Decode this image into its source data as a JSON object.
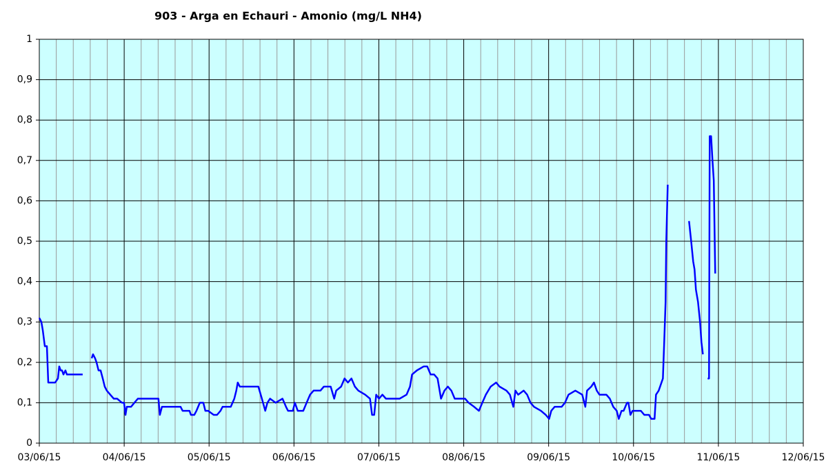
{
  "chart_data": {
    "type": "line",
    "title": "903 - Arga en Echauri - Amonio (mg/L NH4)",
    "x": [
      0,
      0.024,
      0.041,
      0.065,
      0.089,
      0.106,
      0.187,
      0.219,
      0.235,
      0.252,
      0.268,
      0.284,
      0.308,
      0.325,
      0.511,
      null,
      0.617,
      0.633,
      0.657,
      0.674,
      0.698,
      0.722,
      0.747,
      0.771,
      0.795,
      0.836,
      0.877,
      0.917,
      0.974,
      0.998,
      1.015,
      1.031,
      1.08,
      1.12,
      1.161,
      1.201,
      1.282,
      1.404,
      1.42,
      1.445,
      1.567,
      1.664,
      1.688,
      1.769,
      1.786,
      1.826,
      1.851,
      1.891,
      1.932,
      1.956,
      1.989,
      2.054,
      2.094,
      2.135,
      2.159,
      2.256,
      2.297,
      2.321,
      2.338,
      2.362,
      2.581,
      2.622,
      2.662,
      2.687,
      2.719,
      2.784,
      2.865,
      2.906,
      2.93,
      2.987,
      3.011,
      3.044,
      3.109,
      3.149,
      3.19,
      3.231,
      3.312,
      3.352,
      3.433,
      3.474,
      3.498,
      3.555,
      3.596,
      3.636,
      3.677,
      3.718,
      3.758,
      3.839,
      3.896,
      3.92,
      3.945,
      3.969,
      4.002,
      4.042,
      4.083,
      4.245,
      4.326,
      4.367,
      4.391,
      4.448,
      4.529,
      4.57,
      4.61,
      4.651,
      4.692,
      4.732,
      4.773,
      4.813,
      4.854,
      4.894,
      5.016,
      5.057,
      5.122,
      5.179,
      5.219,
      5.26,
      5.317,
      5.381,
      5.422,
      5.503,
      5.544,
      5.584,
      5.609,
      5.641,
      5.706,
      5.747,
      5.787,
      5.828,
      5.909,
      5.966,
      6.006,
      6.031,
      6.071,
      6.153,
      6.193,
      6.234,
      6.315,
      6.396,
      6.432,
      6.453,
      6.502,
      6.534,
      6.567,
      6.599,
      6.68,
      6.721,
      6.761,
      6.802,
      6.826,
      6.859,
      6.883,
      6.924,
      6.94,
      6.964,
      6.989,
      7.086,
      7.127,
      7.183,
      7.208,
      7.248,
      7.265,
      7.297,
      7.346,
      7.362,
      7.378,
      7.386,
      7.403,
      null,
      7.654,
      7.679,
      7.703,
      7.719,
      7.735,
      7.76,
      7.784,
      7.8,
      7.817,
      null,
      7.873,
      7.89,
      7.898,
      7.914,
      7.93,
      7.946,
      7.963
    ],
    "series": [
      {
        "name": "Amonio",
        "color": "#0000ff",
        "values": [
          0.31,
          0.3,
          0.28,
          0.24,
          0.24,
          0.15,
          0.15,
          0.16,
          0.19,
          0.18,
          0.18,
          0.17,
          0.18,
          0.17,
          0.17,
          null,
          0.21,
          0.22,
          0.21,
          0.2,
          0.18,
          0.18,
          0.16,
          0.14,
          0.13,
          0.12,
          0.11,
          0.11,
          0.1,
          0.1,
          0.07,
          0.09,
          0.09,
          0.1,
          0.11,
          0.11,
          0.11,
          0.11,
          0.07,
          0.09,
          0.09,
          0.09,
          0.08,
          0.08,
          0.07,
          0.07,
          0.08,
          0.1,
          0.1,
          0.08,
          0.08,
          0.07,
          0.07,
          0.08,
          0.09,
          0.09,
          0.11,
          0.13,
          0.15,
          0.14,
          0.14,
          0.11,
          0.08,
          0.1,
          0.11,
          0.1,
          0.11,
          0.09,
          0.08,
          0.08,
          0.1,
          0.08,
          0.08,
          0.1,
          0.12,
          0.13,
          0.13,
          0.14,
          0.14,
          0.11,
          0.13,
          0.14,
          0.16,
          0.15,
          0.16,
          0.14,
          0.13,
          0.12,
          0.11,
          0.07,
          0.07,
          0.12,
          0.11,
          0.12,
          0.11,
          0.11,
          0.12,
          0.14,
          0.17,
          0.18,
          0.19,
          0.19,
          0.17,
          0.17,
          0.16,
          0.11,
          0.13,
          0.14,
          0.13,
          0.11,
          0.11,
          0.1,
          0.09,
          0.08,
          0.1,
          0.12,
          0.14,
          0.15,
          0.14,
          0.13,
          0.12,
          0.09,
          0.13,
          0.12,
          0.13,
          0.12,
          0.1,
          0.09,
          0.08,
          0.07,
          0.06,
          0.08,
          0.09,
          0.09,
          0.1,
          0.12,
          0.13,
          0.12,
          0.09,
          0.13,
          0.14,
          0.15,
          0.13,
          0.12,
          0.12,
          0.11,
          0.09,
          0.08,
          0.06,
          0.08,
          0.08,
          0.1,
          0.1,
          0.07,
          0.08,
          0.08,
          0.07,
          0.07,
          0.06,
          0.06,
          0.12,
          0.13,
          0.16,
          0.25,
          0.35,
          0.5,
          0.64,
          null,
          0.55,
          0.5,
          0.45,
          0.43,
          0.38,
          0.35,
          0.3,
          0.25,
          0.22,
          null,
          0.16,
          0.16,
          0.76,
          0.76,
          0.7,
          0.65,
          0.42
        ]
      }
    ],
    "xlim": [
      0,
      9
    ],
    "xticks": [
      {
        "value": 0,
        "label": "03/06/15"
      },
      {
        "value": 1,
        "label": "04/06/15"
      },
      {
        "value": 2,
        "label": "05/06/15"
      },
      {
        "value": 3,
        "label": "06/06/15"
      },
      {
        "value": 4,
        "label": "07/06/15"
      },
      {
        "value": 5,
        "label": "08/06/15"
      },
      {
        "value": 6,
        "label": "09/06/15"
      },
      {
        "value": 7,
        "label": "10/06/15"
      },
      {
        "value": 8,
        "label": "11/06/15"
      },
      {
        "value": 9,
        "label": "12/06/15"
      }
    ],
    "ylim": [
      0,
      1
    ],
    "yticks": [
      0,
      {
        "value": 0.1,
        "label": "0,1"
      },
      {
        "value": 0.2,
        "label": "0,2"
      },
      {
        "value": 0.3,
        "label": "0,3"
      },
      {
        "value": 0.4,
        "label": "0,4"
      },
      {
        "value": 0.5,
        "label": "0,5"
      },
      {
        "value": 0.6,
        "label": "0,6"
      },
      {
        "value": 0.7,
        "label": "0,7"
      },
      {
        "value": 0.8,
        "label": "0,8"
      },
      {
        "value": 0.9,
        "label": "0,9"
      },
      1
    ],
    "grid": true
  }
}
